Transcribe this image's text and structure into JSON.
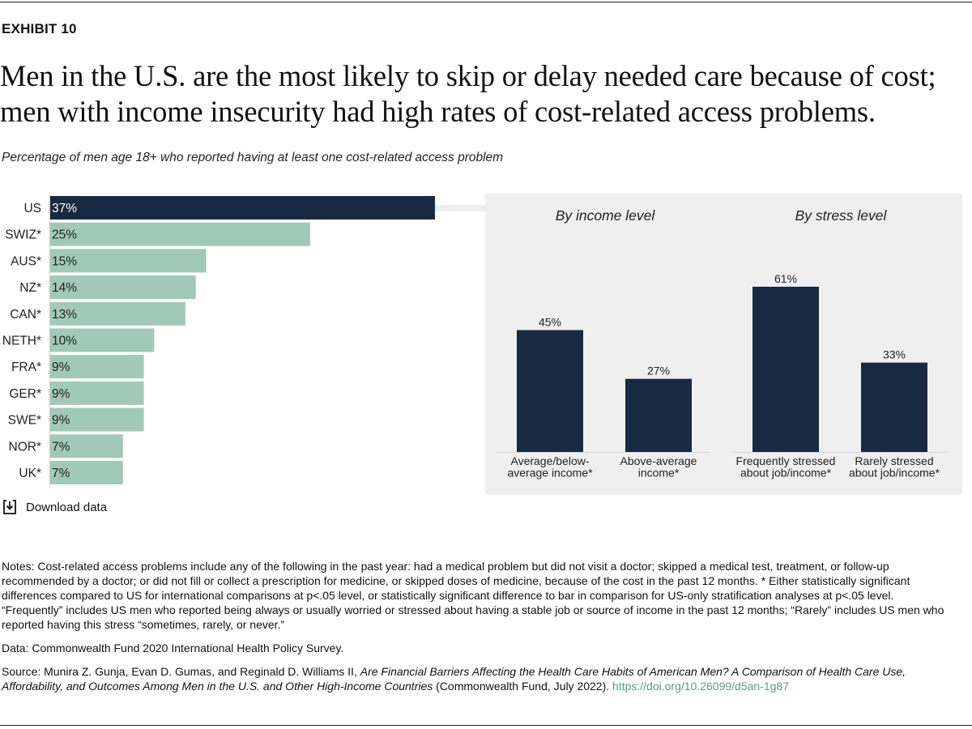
{
  "exhibit_label": "EXHIBIT 10",
  "title": "Men in the U.S. are the most likely to skip or delay needed care because of cost; men with income insecurity had high rates of cost-related access problems.",
  "subtitle": "Percentage of men age 18+ who reported having at least one cost-related access problem",
  "colors": {
    "highlight": "#172a42",
    "comparison": "#a1c9b9",
    "panel_bg": "#efefef",
    "link": "#5a9a86"
  },
  "chart_data": [
    {
      "type": "bar",
      "orientation": "horizontal",
      "title": "",
      "xlabel": "",
      "ylabel": "",
      "xlim": [
        0,
        37
      ],
      "grid": false,
      "categories": [
        "US",
        "SWIZ*",
        "AUS*",
        "NZ*",
        "CAN*",
        "NETH*",
        "FRA*",
        "GER*",
        "SWE*",
        "NOR*",
        "UK*"
      ],
      "values": [
        37,
        25,
        15,
        14,
        13,
        10,
        9,
        9,
        9,
        7,
        7
      ],
      "value_labels": [
        "37%",
        "25%",
        "15%",
        "14%",
        "13%",
        "10%",
        "9%",
        "9%",
        "9%",
        "7%",
        "7%"
      ],
      "highlight_index": 0
    },
    {
      "type": "bar",
      "title": "By income level",
      "ylim": [
        0,
        61
      ],
      "categories": [
        [
          "Average/below-",
          "average income*"
        ],
        [
          "Above-average",
          "income*"
        ]
      ],
      "values": [
        45,
        27
      ],
      "value_labels": [
        "45%",
        "27%"
      ]
    },
    {
      "type": "bar",
      "title": "By stress level",
      "ylim": [
        0,
        61
      ],
      "categories": [
        [
          "Frequently stressed",
          "about job/income*"
        ],
        [
          "Rarely stressed",
          "about job/income*"
        ]
      ],
      "values": [
        61,
        33
      ],
      "value_labels": [
        "61%",
        "33%"
      ]
    }
  ],
  "download": {
    "label": "Download data",
    "icon": "download-icon"
  },
  "notes": {
    "text": "Notes: Cost-related access problems include any of the following in the past year: had a medical problem but did not visit a doctor; skipped a medical test, treatment, or follow-up recommended by a doctor; or did not fill or collect a prescription for medicine, or skipped doses of medicine, because of the cost in the past 12 months. * Either statistically significant differences compared to US for international comparisons at p<.05 level, or statistically significant difference to bar in comparison for US-only stratification analyses at p<.05 level. “Frequently” includes US men who reported being always or usually worried or stressed about having a stable job or source of income in the past 12 months; “Rarely” includes US men who reported having this stress “sometimes, rarely, or never.”",
    "data_line": "Data: Commonwealth Fund 2020 International Health Policy Survey.",
    "source_prefix": "Source: Munira Z. Gunja, Evan D. Gumas, and Reginald D. Williams II, ",
    "source_title": "Are Financial Barriers Affecting the Health Care Habits of American Men? A Comparison of Health Care Use, Affordability, and Outcomes Among Men in the U.S. and Other High-Income Countries",
    "source_suffix": " (Commonwealth Fund, July 2022). ",
    "doi": "https://doi.org/10.26099/d5an-1g87"
  }
}
